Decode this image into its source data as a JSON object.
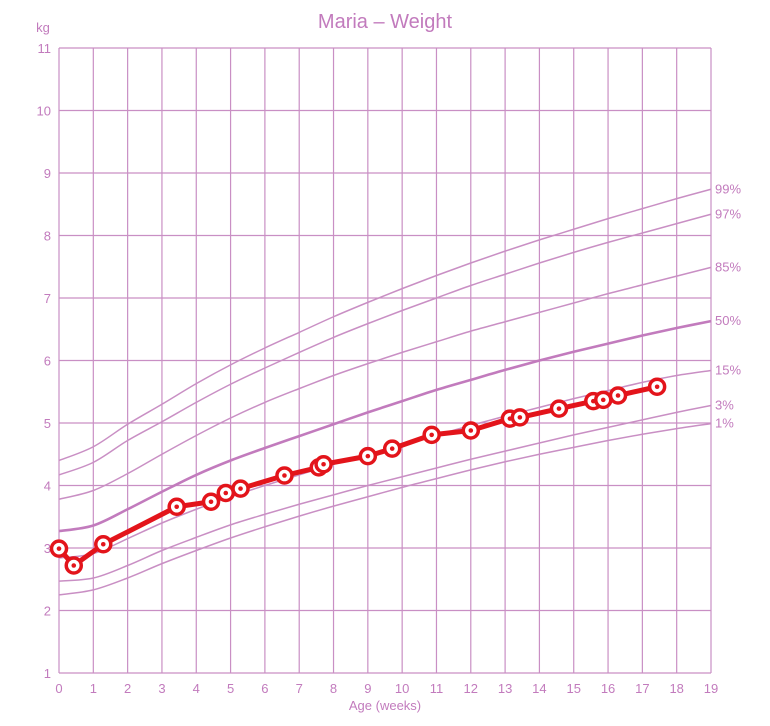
{
  "chart_data": {
    "type": "line",
    "title": "Maria – Weight",
    "xlabel": "Age (weeks)",
    "ylabel": "kg",
    "xlim": [
      0,
      19
    ],
    "ylim": [
      1,
      11
    ],
    "x_ticks": [
      0,
      1,
      2,
      3,
      4,
      5,
      6,
      7,
      8,
      9,
      10,
      11,
      12,
      13,
      14,
      15,
      16,
      17,
      18,
      19
    ],
    "y_ticks": [
      1,
      2,
      3,
      4,
      5,
      6,
      7,
      8,
      9,
      10,
      11
    ],
    "grid": true,
    "colors": {
      "grid": "#c98fc4",
      "text": "#c27bbd",
      "percentile": "#c98fc4",
      "median": "#c27bbd",
      "measurement": "#e3141b"
    },
    "percentiles": [
      {
        "name": "99%",
        "x": [
          0,
          1,
          2,
          3,
          4,
          5,
          6,
          7,
          8,
          9,
          10,
          11,
          12,
          13,
          14,
          15,
          16,
          17,
          18,
          19
        ],
        "values": [
          4.4,
          4.62,
          4.98,
          5.3,
          5.63,
          5.93,
          6.2,
          6.45,
          6.7,
          6.93,
          7.15,
          7.36,
          7.56,
          7.75,
          7.93,
          8.1,
          8.27,
          8.43,
          8.59,
          8.74
        ]
      },
      {
        "name": "97%",
        "x": [
          0,
          1,
          2,
          3,
          4,
          5,
          6,
          7,
          8,
          9,
          10,
          11,
          12,
          13,
          14,
          15,
          16,
          17,
          18,
          19
        ],
        "values": [
          4.17,
          4.37,
          4.72,
          5.02,
          5.33,
          5.62,
          5.88,
          6.13,
          6.37,
          6.59,
          6.8,
          7.0,
          7.2,
          7.38,
          7.56,
          7.73,
          7.89,
          8.04,
          8.19,
          8.34
        ]
      },
      {
        "name": "85%",
        "x": [
          0,
          1,
          2,
          3,
          4,
          5,
          6,
          7,
          8,
          9,
          10,
          11,
          12,
          13,
          14,
          15,
          16,
          17,
          18,
          19
        ],
        "values": [
          3.78,
          3.92,
          4.19,
          4.5,
          4.8,
          5.08,
          5.33,
          5.55,
          5.76,
          5.95,
          6.13,
          6.3,
          6.47,
          6.62,
          6.77,
          6.92,
          7.07,
          7.21,
          7.35,
          7.49
        ]
      },
      {
        "name": "50%",
        "x": [
          0,
          1,
          2,
          3,
          4,
          5,
          6,
          7,
          8,
          9,
          10,
          11,
          12,
          13,
          14,
          15,
          16,
          17,
          18,
          19
        ],
        "values": [
          3.27,
          3.36,
          3.62,
          3.9,
          4.17,
          4.4,
          4.6,
          4.79,
          4.98,
          5.17,
          5.35,
          5.53,
          5.69,
          5.85,
          6.0,
          6.14,
          6.27,
          6.4,
          6.52,
          6.63
        ]
      },
      {
        "name": "15%",
        "x": [
          0,
          1,
          2,
          3,
          4,
          5,
          6,
          7,
          8,
          9,
          10,
          11,
          12,
          13,
          14,
          15,
          16,
          17,
          18,
          19
        ],
        "values": [
          2.84,
          2.91,
          3.15,
          3.4,
          3.62,
          3.82,
          4.0,
          4.17,
          4.34,
          4.5,
          4.66,
          4.81,
          4.96,
          5.11,
          5.25,
          5.39,
          5.52,
          5.65,
          5.76,
          5.84
        ]
      },
      {
        "name": "3%",
        "x": [
          0,
          1,
          2,
          3,
          4,
          5,
          6,
          7,
          8,
          9,
          10,
          11,
          12,
          13,
          14,
          15,
          16,
          17,
          18,
          19
        ],
        "values": [
          2.47,
          2.52,
          2.72,
          2.96,
          3.17,
          3.37,
          3.54,
          3.7,
          3.85,
          4.0,
          4.14,
          4.28,
          4.42,
          4.55,
          4.68,
          4.81,
          4.93,
          5.05,
          5.17,
          5.28
        ]
      },
      {
        "name": "1%",
        "x": [
          0,
          1,
          2,
          3,
          4,
          5,
          6,
          7,
          8,
          9,
          10,
          11,
          12,
          13,
          14,
          15,
          16,
          17,
          18,
          19
        ],
        "values": [
          2.25,
          2.33,
          2.52,
          2.75,
          2.96,
          3.16,
          3.34,
          3.51,
          3.67,
          3.82,
          3.97,
          4.11,
          4.25,
          4.38,
          4.5,
          4.61,
          4.72,
          4.82,
          4.91,
          4.99
        ]
      }
    ],
    "series": [
      {
        "x": [
          0,
          0.43,
          1.29,
          3.43,
          4.43,
          4.86,
          5.29,
          6.57,
          7.57,
          7.71,
          9.0,
          9.71,
          10.86,
          12.0,
          13.14,
          13.43,
          14.57,
          15.57,
          15.86,
          16.29,
          17.43
        ],
        "values": [
          2.99,
          2.72,
          3.06,
          3.66,
          3.74,
          3.88,
          3.95,
          4.16,
          4.29,
          4.34,
          4.47,
          4.59,
          4.81,
          4.88,
          5.07,
          5.09,
          5.23,
          5.35,
          5.37,
          5.44,
          5.58
        ]
      }
    ]
  }
}
